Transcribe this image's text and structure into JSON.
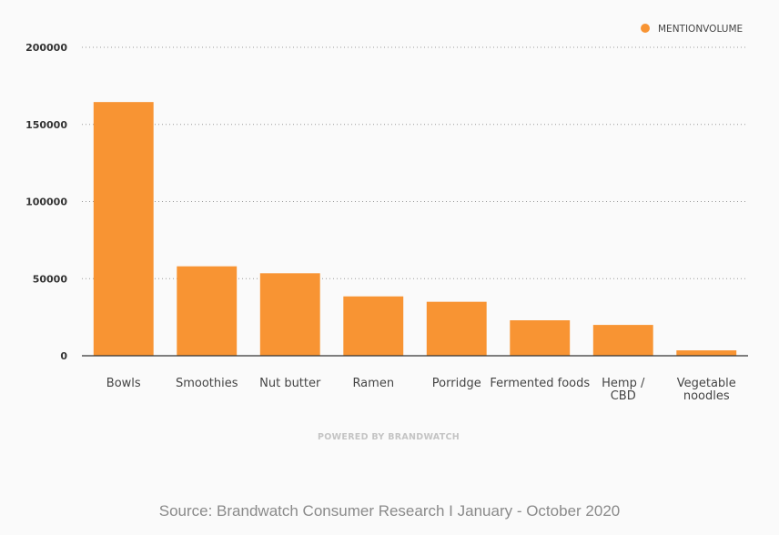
{
  "chart_data": {
    "type": "bar",
    "categories": [
      "Bowls",
      "Smoothies",
      "Nut butter",
      "Ramen",
      "Porridge",
      "Fermented foods",
      "Hemp / CBD",
      "Vegetable noodles"
    ],
    "series": [
      {
        "name": "MENTIONVOLUME",
        "values": [
          164500,
          58000,
          53500,
          38500,
          35000,
          23000,
          20000,
          3500
        ]
      }
    ],
    "yticks": [
      "0",
      "50000",
      "100000",
      "150000",
      "200000"
    ],
    "ylim": [
      0,
      200000
    ],
    "grid": true,
    "legend_position": "top-right",
    "bar_color": "#f89433"
  },
  "footer": {
    "powered_by": "POWERED BY BRANDWATCH",
    "source": "Source: Brandwatch Consumer Research I January - October 2020"
  }
}
